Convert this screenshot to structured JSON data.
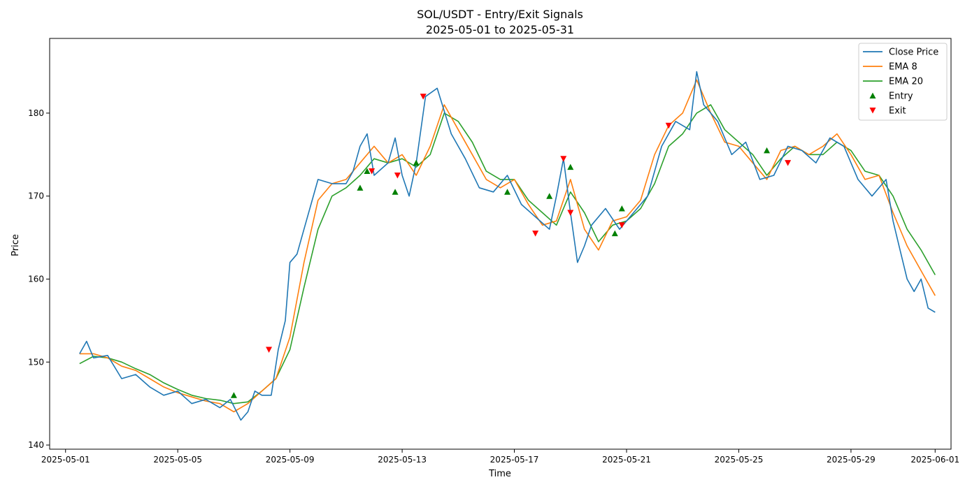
{
  "chart_data": {
    "type": "line",
    "title": "SOL/USDT - Entry/Exit Signals",
    "subtitle": "2025-05-01 to 2025-05-31",
    "xlabel": "Time",
    "ylabel": "Price",
    "xlim": [
      "2025-04-30T10:24",
      "2025-06-01T13:36"
    ],
    "ylim": [
      139.5,
      189
    ],
    "x_ticks": [
      "2025-05-01",
      "2025-05-05",
      "2025-05-09",
      "2025-05-13",
      "2025-05-17",
      "2025-05-21",
      "2025-05-25",
      "2025-05-29",
      "2025-06-01"
    ],
    "y_ticks": [
      140,
      150,
      160,
      170,
      180
    ],
    "grid": false,
    "legend": {
      "position": "top-right",
      "entries": [
        "Close Price",
        "EMA 8",
        "EMA 20",
        "Entry",
        "Exit"
      ]
    },
    "colors": {
      "close": "#1f77b4",
      "ema8": "#ff7f0e",
      "ema20": "#2ca02c",
      "entry": "#008000",
      "exit": "#ff0000"
    },
    "series": [
      {
        "name": "Close Price",
        "x": [
          "2025-05-01T12:00",
          "2025-05-01T18:00",
          "2025-05-02T00:00",
          "2025-05-02T12:00",
          "2025-05-03T00:00",
          "2025-05-03T12:00",
          "2025-05-04T00:00",
          "2025-05-04T12:00",
          "2025-05-05T00:00",
          "2025-05-05T12:00",
          "2025-05-06T00:00",
          "2025-05-06T12:00",
          "2025-05-06T21:00",
          "2025-05-07T06:00",
          "2025-05-07T12:00",
          "2025-05-07T18:00",
          "2025-05-08T00:00",
          "2025-05-08T08:00",
          "2025-05-08T14:00",
          "2025-05-08T20:00",
          "2025-05-09T00:00",
          "2025-05-09T06:00",
          "2025-05-09T12:00",
          "2025-05-10T00:00",
          "2025-05-10T12:00",
          "2025-05-11T00:00",
          "2025-05-11T06:00",
          "2025-05-11T12:00",
          "2025-05-11T18:00",
          "2025-05-12T00:00",
          "2025-05-12T12:00",
          "2025-05-12T18:00",
          "2025-05-13T00:00",
          "2025-05-13T06:00",
          "2025-05-13T12:00",
          "2025-05-13T20:00",
          "2025-05-14T06:00",
          "2025-05-14T18:00",
          "2025-05-15T06:00",
          "2025-05-15T18:00",
          "2025-05-16T06:00",
          "2025-05-16T18:00",
          "2025-05-17T06:00",
          "2025-05-17T18:00",
          "2025-05-18T06:00",
          "2025-05-18T12:00",
          "2025-05-18T18:00",
          "2025-05-19T00:00",
          "2025-05-19T06:00",
          "2025-05-19T12:00",
          "2025-05-19T18:00",
          "2025-05-20T06:00",
          "2025-05-20T18:00",
          "2025-05-21T06:00",
          "2025-05-21T18:00",
          "2025-05-22T06:00",
          "2025-05-22T18:00",
          "2025-05-23T06:00",
          "2025-05-23T12:00",
          "2025-05-23T18:00",
          "2025-05-24T06:00",
          "2025-05-24T18:00",
          "2025-05-25T06:00",
          "2025-05-25T18:00",
          "2025-05-26T06:00",
          "2025-05-26T18:00",
          "2025-05-27T06:00",
          "2025-05-27T18:00",
          "2025-05-28T06:00",
          "2025-05-28T18:00",
          "2025-05-29T06:00",
          "2025-05-29T18:00",
          "2025-05-30T06:00",
          "2025-05-30T12:00",
          "2025-05-30T18:00",
          "2025-05-31T00:00",
          "2025-05-31T06:00",
          "2025-05-31T12:00",
          "2025-05-31T18:00",
          "2025-06-01T00:00"
        ],
        "values": [
          151.0,
          152.5,
          150.5,
          150.8,
          148.0,
          148.5,
          147.0,
          146.0,
          146.5,
          145.0,
          145.5,
          144.5,
          145.5,
          143.0,
          144.0,
          146.5,
          146.0,
          146.0,
          151.5,
          155.0,
          162.0,
          163.0,
          166.0,
          172.0,
          171.5,
          171.5,
          173.0,
          176.0,
          177.5,
          172.5,
          174.0,
          177.0,
          172.5,
          170.0,
          174.0,
          182.0,
          183.0,
          177.5,
          174.5,
          171.0,
          170.5,
          172.5,
          169.0,
          167.5,
          166.0,
          170.0,
          174.5,
          168.0,
          162.0,
          164.0,
          166.5,
          168.5,
          166.0,
          168.0,
          170.0,
          176.0,
          179.0,
          178.0,
          185.0,
          181.0,
          179.0,
          175.0,
          176.5,
          172.0,
          172.5,
          176.0,
          175.5,
          174.0,
          177.0,
          176.0,
          172.0,
          170.0,
          172.0,
          167.0,
          163.5,
          160.0,
          158.5,
          160.0,
          156.5,
          156.0
        ]
      },
      {
        "name": "EMA 8",
        "x": [
          "2025-05-01T12:00",
          "2025-05-02T00:00",
          "2025-05-02T12:00",
          "2025-05-03T00:00",
          "2025-05-03T12:00",
          "2025-05-04T00:00",
          "2025-05-04T12:00",
          "2025-05-05T00:00",
          "2025-05-05T12:00",
          "2025-05-06T00:00",
          "2025-05-06T12:00",
          "2025-05-07T00:00",
          "2025-05-07T12:00",
          "2025-05-08T00:00",
          "2025-05-08T12:00",
          "2025-05-09T00:00",
          "2025-05-09T12:00",
          "2025-05-10T00:00",
          "2025-05-10T12:00",
          "2025-05-11T00:00",
          "2025-05-11T12:00",
          "2025-05-12T00:00",
          "2025-05-12T12:00",
          "2025-05-13T00:00",
          "2025-05-13T12:00",
          "2025-05-14T00:00",
          "2025-05-14T12:00",
          "2025-05-15T00:00",
          "2025-05-15T12:00",
          "2025-05-16T00:00",
          "2025-05-16T12:00",
          "2025-05-17T00:00",
          "2025-05-17T12:00",
          "2025-05-18T00:00",
          "2025-05-18T12:00",
          "2025-05-19T00:00",
          "2025-05-19T12:00",
          "2025-05-20T00:00",
          "2025-05-20T12:00",
          "2025-05-21T00:00",
          "2025-05-21T12:00",
          "2025-05-22T00:00",
          "2025-05-22T12:00",
          "2025-05-23T00:00",
          "2025-05-23T12:00",
          "2025-05-24T00:00",
          "2025-05-24T12:00",
          "2025-05-25T00:00",
          "2025-05-25T12:00",
          "2025-05-26T00:00",
          "2025-05-26T12:00",
          "2025-05-27T00:00",
          "2025-05-27T12:00",
          "2025-05-28T00:00",
          "2025-05-28T12:00",
          "2025-05-29T00:00",
          "2025-05-29T12:00",
          "2025-05-30T00:00",
          "2025-05-30T12:00",
          "2025-05-31T00:00",
          "2025-05-31T12:00",
          "2025-06-01T00:00"
        ],
        "values": [
          151.0,
          151.0,
          150.5,
          149.5,
          149.0,
          148.0,
          147.0,
          146.3,
          145.8,
          145.3,
          145.0,
          144.0,
          145.0,
          146.5,
          148.0,
          153.0,
          162.0,
          169.5,
          171.5,
          172.0,
          174.0,
          176.0,
          174.0,
          175.0,
          172.5,
          176.0,
          181.0,
          178.0,
          175.0,
          172.0,
          171.0,
          172.0,
          169.0,
          166.5,
          167.0,
          172.0,
          166.0,
          163.5,
          167.0,
          167.5,
          169.5,
          175.0,
          178.5,
          180.0,
          184.0,
          180.0,
          176.5,
          176.0,
          174.0,
          172.0,
          175.5,
          176.0,
          175.0,
          176.0,
          177.5,
          175.0,
          172.0,
          172.5,
          168.0,
          164.0,
          161.0,
          158.0
        ]
      },
      {
        "name": "EMA 20",
        "x": [
          "2025-05-01T12:00",
          "2025-05-02T00:00",
          "2025-05-02T12:00",
          "2025-05-03T00:00",
          "2025-05-03T12:00",
          "2025-05-04T00:00",
          "2025-05-04T12:00",
          "2025-05-05T00:00",
          "2025-05-05T12:00",
          "2025-05-06T00:00",
          "2025-05-06T12:00",
          "2025-05-07T00:00",
          "2025-05-07T12:00",
          "2025-05-08T00:00",
          "2025-05-08T12:00",
          "2025-05-09T00:00",
          "2025-05-09T12:00",
          "2025-05-10T00:00",
          "2025-05-10T12:00",
          "2025-05-11T00:00",
          "2025-05-11T12:00",
          "2025-05-12T00:00",
          "2025-05-12T12:00",
          "2025-05-13T00:00",
          "2025-05-13T12:00",
          "2025-05-14T00:00",
          "2025-05-14T12:00",
          "2025-05-15T00:00",
          "2025-05-15T12:00",
          "2025-05-16T00:00",
          "2025-05-16T12:00",
          "2025-05-17T00:00",
          "2025-05-17T12:00",
          "2025-05-18T00:00",
          "2025-05-18T12:00",
          "2025-05-19T00:00",
          "2025-05-19T12:00",
          "2025-05-20T00:00",
          "2025-05-20T12:00",
          "2025-05-21T00:00",
          "2025-05-21T12:00",
          "2025-05-22T00:00",
          "2025-05-22T12:00",
          "2025-05-23T00:00",
          "2025-05-23T12:00",
          "2025-05-24T00:00",
          "2025-05-24T12:00",
          "2025-05-25T00:00",
          "2025-05-25T12:00",
          "2025-05-26T00:00",
          "2025-05-26T12:00",
          "2025-05-27T00:00",
          "2025-05-27T12:00",
          "2025-05-28T00:00",
          "2025-05-28T12:00",
          "2025-05-29T00:00",
          "2025-05-29T12:00",
          "2025-05-30T00:00",
          "2025-05-30T12:00",
          "2025-05-31T00:00",
          "2025-05-31T12:00",
          "2025-06-01T00:00"
        ],
        "values": [
          149.8,
          150.7,
          150.5,
          150.0,
          149.2,
          148.5,
          147.5,
          146.7,
          146.0,
          145.6,
          145.4,
          145.0,
          145.2,
          146.5,
          148.0,
          151.5,
          159.0,
          166.0,
          170.0,
          171.0,
          172.5,
          174.5,
          174.0,
          174.5,
          173.5,
          175.0,
          180.0,
          179.0,
          176.5,
          173.0,
          172.0,
          172.0,
          169.5,
          168.0,
          166.5,
          170.5,
          168.0,
          164.5,
          166.5,
          167.0,
          168.5,
          171.5,
          176.0,
          177.5,
          180.0,
          181.0,
          178.0,
          176.5,
          175.0,
          172.5,
          174.5,
          176.0,
          175.0,
          175.0,
          176.5,
          175.5,
          173.0,
          172.5,
          170.0,
          166.0,
          163.5,
          160.5
        ]
      }
    ],
    "entry_signals": {
      "name": "Entry",
      "x": [
        "2025-05-07T00:00",
        "2025-05-11T12:00",
        "2025-05-11T18:00",
        "2025-05-12T18:00",
        "2025-05-13T12:00",
        "2025-05-16T18:00",
        "2025-05-18T06:00",
        "2025-05-19T00:00",
        "2025-05-20T14:00",
        "2025-05-20T20:00",
        "2025-05-26T00:00"
      ],
      "values": [
        146.0,
        171.0,
        173.0,
        170.5,
        174.0,
        170.5,
        170.0,
        173.5,
        165.5,
        168.5,
        175.5
      ]
    },
    "exit_signals": {
      "name": "Exit",
      "x": [
        "2025-05-08T06:00",
        "2025-05-11T22:00",
        "2025-05-12T20:00",
        "2025-05-13T18:00",
        "2025-05-17T18:00",
        "2025-05-18T18:00",
        "2025-05-19T00:00",
        "2025-05-20T20:00",
        "2025-05-22T12:00",
        "2025-05-26T18:00"
      ],
      "values": [
        151.5,
        173.0,
        172.5,
        182.0,
        165.5,
        174.5,
        168.0,
        166.5,
        178.5,
        174.0
      ]
    }
  }
}
